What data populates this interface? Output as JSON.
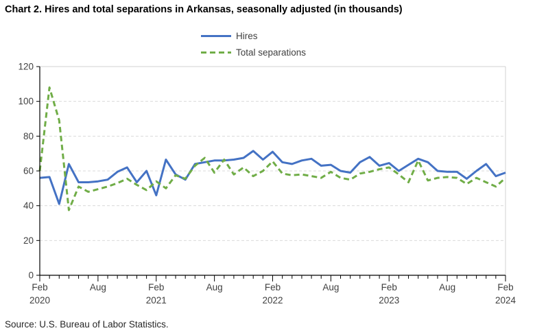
{
  "title": "Chart 2. Hires and total separations in Arkansas, seasonally adjusted (in thousands)",
  "source": "Source: U.S. Bureau of Labor Statistics.",
  "legend": {
    "hires_label": "Hires",
    "separations_label": "Total separations"
  },
  "colors": {
    "hires": "#4472C4",
    "separations": "#70AD47",
    "grid": "#D9D9D9",
    "border": "#D0D0D0",
    "axis": "#000000",
    "tick_text": "#404040"
  },
  "chart_data": {
    "type": "line",
    "title": "Chart 2. Hires and total separations in Arkansas, seasonally adjusted (in thousands)",
    "x_interval": "monthly",
    "x_start": "Feb 2020",
    "x_end": "Feb 2024",
    "ylim": [
      0,
      120
    ],
    "yticks": [
      0,
      20,
      40,
      60,
      80,
      100,
      120
    ],
    "grid": "horizontal-dashed",
    "legend_position": "top-center",
    "x_tick_positions": [
      0,
      6,
      12,
      18,
      24,
      30,
      36,
      42,
      48
    ],
    "x_tick_labels": [
      [
        "Feb",
        "2020"
      ],
      [
        "Aug"
      ],
      [
        "Feb",
        "2021"
      ],
      [
        "Aug"
      ],
      [
        "Feb",
        "2022"
      ],
      [
        "Aug"
      ],
      [
        "Feb",
        "2023"
      ],
      [
        "Aug"
      ],
      [
        "Feb",
        "2024"
      ]
    ],
    "months": [
      "Feb 2020",
      "Mar 2020",
      "Apr 2020",
      "May 2020",
      "Jun 2020",
      "Jul 2020",
      "Aug 2020",
      "Sep 2020",
      "Oct 2020",
      "Nov 2020",
      "Dec 2020",
      "Jan 2021",
      "Feb 2021",
      "Mar 2021",
      "Apr 2021",
      "May 2021",
      "Jun 2021",
      "Jul 2021",
      "Aug 2021",
      "Sep 2021",
      "Oct 2021",
      "Nov 2021",
      "Dec 2021",
      "Jan 2022",
      "Feb 2022",
      "Mar 2022",
      "Apr 2022",
      "May 2022",
      "Jun 2022",
      "Jul 2022",
      "Aug 2022",
      "Sep 2022",
      "Oct 2022",
      "Nov 2022",
      "Dec 2022",
      "Jan 2023",
      "Feb 2023",
      "Mar 2023",
      "Apr 2023",
      "May 2023",
      "Jun 2023",
      "Jul 2023",
      "Aug 2023",
      "Sep 2023",
      "Oct 2023",
      "Nov 2023",
      "Dec 2023",
      "Jan 2024",
      "Feb 2024"
    ],
    "series": [
      {
        "name": "Hires",
        "style": "solid",
        "values": [
          56,
          56.5,
          41,
          64,
          53.5,
          53.5,
          54,
          55,
          59.5,
          62,
          53.5,
          60,
          46,
          66.5,
          58,
          55,
          64,
          65,
          66,
          66,
          66.5,
          67.5,
          71.5,
          66.5,
          71,
          65,
          64,
          66,
          67,
          63,
          63.5,
          60,
          59,
          65,
          68,
          63,
          64.5,
          60,
          63.5,
          67,
          65,
          60,
          59.5,
          59.5,
          55.5,
          60,
          64,
          57,
          59
        ]
      },
      {
        "name": "Total separations",
        "style": "dashed",
        "values": [
          60,
          108,
          89,
          37.5,
          51,
          48,
          49.5,
          51,
          53,
          55.5,
          52,
          49,
          54,
          50,
          57.5,
          55.5,
          63,
          67.5,
          59,
          66.5,
          58,
          62,
          57,
          60,
          65.5,
          58.5,
          57.5,
          58,
          57,
          56,
          59.5,
          56,
          55,
          58.5,
          59.5,
          61,
          62,
          58,
          53.5,
          66,
          54.5,
          56,
          56.5,
          56,
          52.5,
          56,
          53.5,
          51,
          56
        ]
      }
    ]
  }
}
